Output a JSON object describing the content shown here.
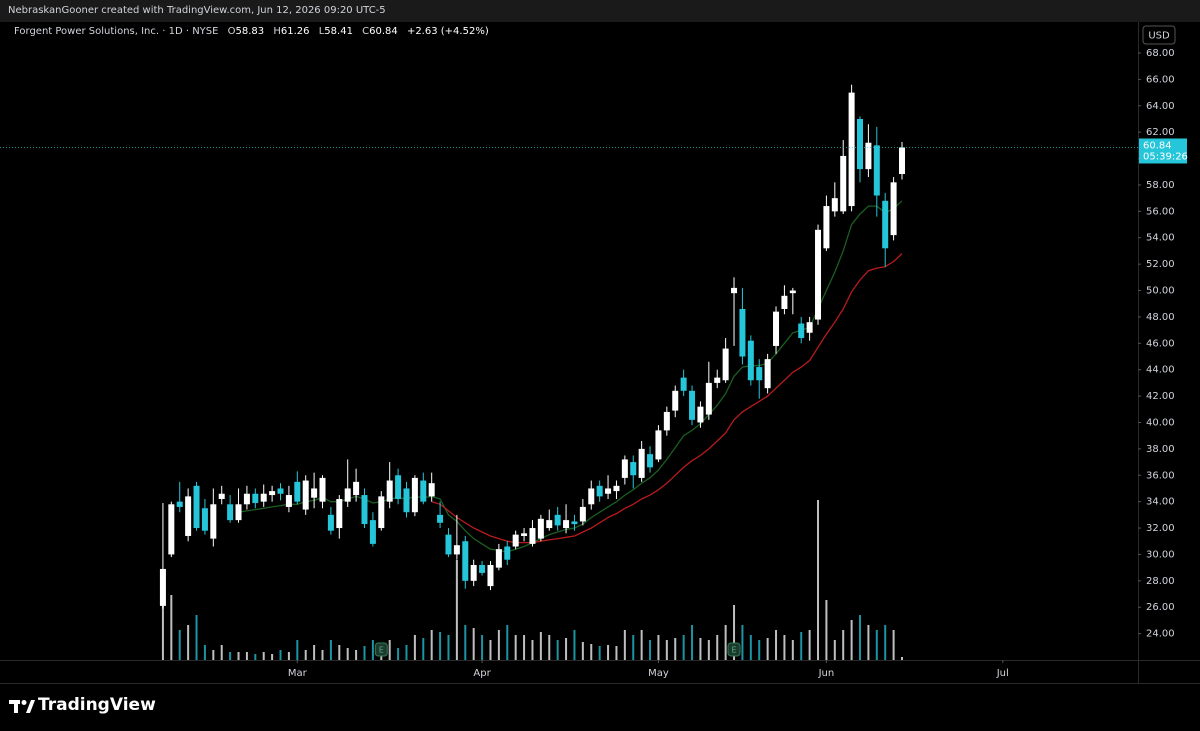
{
  "header": {
    "created": "NebraskanGooner created with TradingView.com, Jun 12, 2026 09:20 UTC-5",
    "symbol_line": "Forgent Power Solutions, Inc. · 1D · NYSE",
    "o_label": "O",
    "h_label": "H",
    "l_label": "L",
    "c_label": "C",
    "change": "+2.63",
    "change_pct": "(+4.52%)",
    "currency": "USD",
    "countdown": "05:39:26",
    "brand": "TradingView"
  },
  "chart_data": {
    "type": "candlestick",
    "open": [
      26.1,
      30.0,
      34.0,
      31.4,
      35.2,
      33.5,
      31.2,
      34.2,
      33.8,
      32.6,
      33.8,
      34.6,
      34.0,
      34.5,
      35.0,
      33.6,
      35.5,
      33.4,
      34.3,
      34.0,
      33.0,
      32.0,
      34.0,
      34.5,
      34.5,
      32.6,
      32.0,
      34.0,
      36.0,
      35.0,
      33.2,
      35.6,
      34.4,
      33.0,
      31.5,
      30.0,
      31.0,
      28.0,
      29.2,
      27.6,
      29.0,
      30.6,
      30.6,
      31.4,
      30.8,
      31.2,
      32.0,
      33.0,
      32.0,
      32.5,
      32.5,
      33.8,
      35.2,
      34.6,
      34.8,
      35.8,
      37.0,
      35.8,
      37.6,
      37.2,
      39.4,
      40.9,
      43.4,
      42.4,
      40.0,
      40.6,
      43.0,
      43.2,
      49.8,
      48.6,
      46.2,
      44.2,
      42.6,
      45.8,
      48.6,
      49.8,
      47.5,
      46.8,
      47.8,
      53.2,
      56.0,
      56.0,
      56.4,
      63.0,
      59.2,
      61.0,
      56.8,
      54.2,
      58.83
    ],
    "high": [
      33.9,
      34.0,
      35.5,
      35.0,
      35.5,
      34.2,
      35.0,
      35.2,
      34.5,
      35.0,
      35.2,
      35.0,
      35.3,
      35.2,
      35.4,
      35.2,
      36.3,
      36.0,
      36.2,
      36.0,
      33.6,
      34.5,
      37.2,
      36.5,
      35.0,
      33.2,
      34.8,
      37.0,
      36.5,
      35.5,
      36.0,
      36.2,
      36.2,
      34.0,
      32.0,
      33.0,
      31.4,
      29.6,
      29.5,
      29.5,
      30.8,
      31.0,
      31.8,
      32.0,
      32.6,
      33.0,
      33.4,
      33.6,
      33.8,
      33.0,
      34.2,
      35.6,
      35.6,
      36.0,
      35.6,
      37.5,
      37.5,
      38.6,
      38.2,
      39.8,
      41.2,
      42.8,
      44.0,
      42.8,
      41.6,
      44.6,
      44.0,
      46.4,
      51.0,
      50.2,
      46.6,
      44.8,
      45.2,
      48.8,
      50.4,
      50.2,
      48.0,
      48.0,
      55.0,
      57.2,
      58.2,
      61.4,
      65.6,
      63.2,
      62.6,
      62.4,
      57.4,
      58.6,
      61.26
    ],
    "low": [
      25.9,
      29.8,
      33.2,
      31.0,
      31.8,
      31.5,
      30.6,
      33.8,
      32.4,
      32.4,
      33.4,
      33.5,
      33.6,
      34.0,
      34.1,
      33.2,
      33.8,
      33.0,
      33.5,
      33.5,
      31.5,
      31.2,
      33.6,
      34.0,
      32.0,
      30.6,
      31.8,
      33.5,
      33.8,
      32.8,
      32.9,
      33.8,
      34.0,
      32.0,
      29.8,
      29.6,
      27.4,
      27.6,
      28.4,
      27.3,
      28.8,
      29.2,
      30.4,
      31.0,
      30.6,
      31.0,
      31.8,
      31.8,
      31.6,
      31.8,
      32.2,
      33.4,
      34.0,
      34.2,
      34.2,
      35.3,
      35.0,
      35.5,
      36.2,
      37.0,
      39.0,
      40.4,
      42.0,
      39.8,
      39.6,
      40.2,
      42.6,
      43.0,
      45.8,
      44.4,
      42.8,
      41.8,
      42.2,
      45.2,
      48.2,
      48.2,
      46.0,
      46.2,
      47.4,
      53.0,
      55.6,
      55.8,
      56.0,
      58.2,
      58.6,
      55.6,
      51.8,
      53.8,
      58.41
    ],
    "close": [
      28.9,
      33.8,
      33.6,
      34.4,
      32.0,
      31.8,
      33.8,
      34.6,
      32.6,
      33.8,
      34.6,
      33.9,
      34.6,
      34.8,
      34.6,
      34.5,
      34.0,
      35.6,
      35.0,
      35.8,
      31.8,
      34.2,
      35.0,
      35.5,
      32.3,
      30.8,
      34.4,
      35.6,
      34.2,
      33.2,
      35.8,
      34.0,
      35.4,
      32.4,
      30.0,
      30.7,
      28.0,
      29.2,
      28.6,
      29.2,
      30.4,
      29.6,
      31.5,
      31.6,
      32.0,
      32.7,
      32.6,
      32.2,
      32.6,
      32.3,
      33.6,
      35.0,
      34.4,
      35.0,
      35.2,
      37.2,
      36.0,
      38.0,
      36.6,
      39.4,
      40.8,
      42.4,
      42.4,
      40.2,
      41.2,
      43.0,
      43.4,
      45.6,
      50.2,
      45.0,
      43.2,
      43.2,
      44.8,
      48.4,
      49.6,
      50.0,
      46.4,
      47.6,
      54.6,
      56.4,
      57.0,
      60.2,
      65.0,
      59.2,
      61.2,
      57.2,
      53.2,
      58.2,
      60.84
    ],
    "volume": [
      6.0,
      6.5,
      3.0,
      3.5,
      4.5,
      1.5,
      1.0,
      1.5,
      0.8,
      0.8,
      0.8,
      0.6,
      0.8,
      0.6,
      1.0,
      0.8,
      2.0,
      1.0,
      1.5,
      1.0,
      2.0,
      1.5,
      1.2,
      1.0,
      1.4,
      2.0,
      1.5,
      2.0,
      1.2,
      1.5,
      2.5,
      2.2,
      3.0,
      2.8,
      2.5,
      10.0,
      3.5,
      3.2,
      2.5,
      2.0,
      3.0,
      3.5,
      2.5,
      2.5,
      2.0,
      2.8,
      2.5,
      2.0,
      2.2,
      3.0,
      1.8,
      1.6,
      1.4,
      1.5,
      1.4,
      3.0,
      2.5,
      3.0,
      2.0,
      2.5,
      2.0,
      2.2,
      2.5,
      3.5,
      2.2,
      2.0,
      2.5,
      3.5,
      5.5,
      3.5,
      2.5,
      2.0,
      2.2,
      3.0,
      2.5,
      2.0,
      2.8,
      3.0,
      16.0,
      6.0,
      2.0,
      3.0,
      4.0,
      4.5,
      3.5,
      3.0,
      3.5,
      3.0,
      0.3
    ],
    "moving_averages": [
      {
        "color": "#1b5e20",
        "values": [
          null,
          null,
          null,
          null,
          null,
          null,
          null,
          null,
          null,
          33.2,
          33.3,
          33.4,
          33.5,
          33.6,
          33.7,
          33.8,
          33.8,
          34.0,
          34.1,
          34.3,
          34.0,
          34.0,
          34.2,
          34.4,
          34.2,
          33.9,
          34.0,
          34.2,
          34.3,
          34.2,
          34.4,
          34.3,
          34.4,
          34.2,
          33.0,
          32.5,
          31.8,
          31.2,
          30.8,
          30.4,
          30.3,
          30.2,
          30.4,
          30.6,
          30.9,
          31.2,
          31.5,
          31.7,
          31.9,
          32.0,
          32.3,
          32.8,
          33.2,
          33.6,
          34.0,
          34.5,
          34.9,
          35.4,
          35.8,
          36.4,
          37.2,
          38.1,
          39.0,
          39.4,
          39.9,
          40.6,
          41.3,
          42.2,
          43.5,
          44.2,
          44.3,
          44.3,
          44.5,
          45.2,
          46.0,
          46.8,
          47.0,
          47.2,
          48.6,
          50.0,
          51.4,
          53.0,
          55.0,
          55.8,
          56.4,
          56.4,
          55.9,
          56.2,
          56.8
        ]
      },
      {
        "color": "#b71c1c",
        "values": [
          null,
          null,
          null,
          null,
          null,
          null,
          null,
          null,
          null,
          null,
          null,
          null,
          null,
          null,
          null,
          null,
          null,
          null,
          null,
          null,
          null,
          null,
          null,
          null,
          null,
          null,
          null,
          null,
          null,
          null,
          null,
          null,
          34.0,
          33.8,
          33.3,
          32.8,
          32.4,
          32.0,
          31.7,
          31.4,
          31.2,
          31.0,
          30.9,
          30.9,
          30.9,
          31.0,
          31.1,
          31.2,
          31.3,
          31.4,
          31.7,
          32.0,
          32.4,
          32.8,
          33.1,
          33.5,
          33.8,
          34.2,
          34.5,
          34.9,
          35.4,
          36.0,
          36.6,
          37.1,
          37.5,
          38.0,
          38.6,
          39.2,
          40.2,
          40.8,
          41.2,
          41.6,
          42.0,
          42.6,
          43.2,
          43.8,
          44.2,
          44.7,
          45.7,
          46.7,
          47.6,
          48.6,
          49.9,
          50.8,
          51.5,
          51.7,
          51.8,
          52.2,
          52.8
        ]
      }
    ],
    "up_color": "#ffffff",
    "down_color": "#26c6da",
    "last_price_color": "#26c6da",
    "events": [
      {
        "label": "E",
        "index": 26
      },
      {
        "label": "E",
        "index": 68
      }
    ],
    "ylim": [
      22.0,
      70.35
    ],
    "yticks": [
      {
        "value": 24,
        "label": "24.00"
      },
      {
        "value": 26,
        "label": "26.00"
      },
      {
        "value": 28,
        "label": "28.00"
      },
      {
        "value": 30,
        "label": "30.00"
      },
      {
        "value": 32,
        "label": "32.00"
      },
      {
        "value": 34,
        "label": "34.00"
      },
      {
        "value": 36,
        "label": "36.00"
      },
      {
        "value": 38,
        "label": "38.00"
      },
      {
        "value": 40,
        "label": "40.00"
      },
      {
        "value": 42,
        "label": "42.00"
      },
      {
        "value": 44,
        "label": "44.00"
      },
      {
        "value": 46,
        "label": "46.00"
      },
      {
        "value": 48,
        "label": "48.00"
      },
      {
        "value": 50,
        "label": "50.00"
      },
      {
        "value": 52,
        "label": "52.00"
      },
      {
        "value": 54,
        "label": "54.00"
      },
      {
        "value": 56,
        "label": "56.00"
      },
      {
        "value": 58,
        "label": "58.00"
      },
      {
        "value": 60,
        "label": "60.00"
      },
      {
        "value": 62,
        "label": "62.00"
      },
      {
        "value": 64,
        "label": "64.00"
      },
      {
        "value": 66,
        "label": "66.00"
      },
      {
        "value": 68,
        "label": "68.00"
      }
    ],
    "xlim": [
      -19.4,
      116.1
    ],
    "xticks": [
      {
        "value": 16,
        "label": "Mar"
      },
      {
        "value": 38,
        "label": "Apr"
      },
      {
        "value": 59,
        "label": "May"
      },
      {
        "value": 79,
        "label": "Jun"
      },
      {
        "value": 100,
        "label": "Jul"
      }
    ]
  }
}
